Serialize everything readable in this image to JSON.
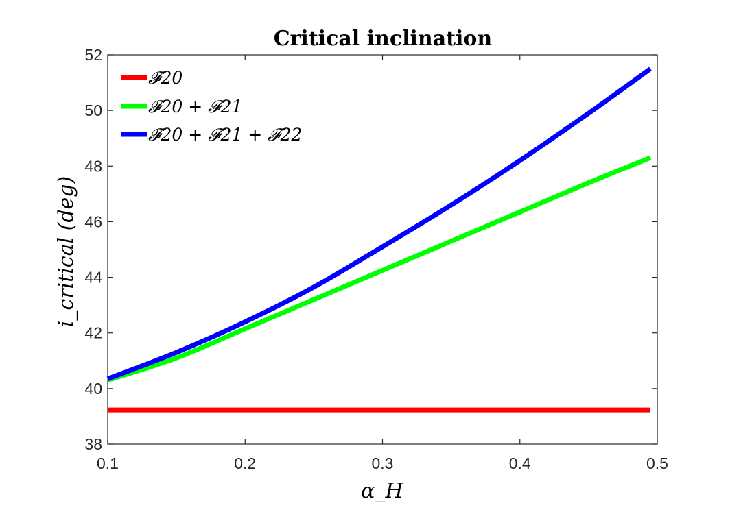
{
  "chart_data": {
    "type": "line",
    "title": "Critical inclination",
    "xlabel": "α_H",
    "ylabel": "i_critical (deg)",
    "xlim": [
      0.1,
      0.5
    ],
    "ylim": [
      38,
      52
    ],
    "xticks": [
      0.1,
      0.2,
      0.3,
      0.4,
      0.5
    ],
    "yticks": [
      38,
      40,
      42,
      44,
      46,
      48,
      50,
      52
    ],
    "grid": false,
    "legend_position": "top-left",
    "series": [
      {
        "name": "𝓕20",
        "color": "#ff0000",
        "x": [
          0.1,
          0.2,
          0.3,
          0.4,
          0.495
        ],
        "y": [
          39.23,
          39.23,
          39.23,
          39.23,
          39.23
        ]
      },
      {
        "name": "𝓕20 + 𝓕21",
        "color": "#00ff00",
        "x": [
          0.1,
          0.15,
          0.2,
          0.25,
          0.3,
          0.35,
          0.4,
          0.45,
          0.495
        ],
        "y": [
          40.3,
          41.1,
          42.15,
          43.2,
          44.25,
          45.3,
          46.35,
          47.4,
          48.3
        ]
      },
      {
        "name": "𝓕20 + 𝓕21 + 𝓕22",
        "color": "#0000ff",
        "x": [
          0.1,
          0.15,
          0.2,
          0.25,
          0.3,
          0.35,
          0.4,
          0.45,
          0.495
        ],
        "y": [
          40.35,
          41.3,
          42.4,
          43.65,
          45.1,
          46.6,
          48.2,
          49.9,
          51.5
        ]
      }
    ]
  }
}
